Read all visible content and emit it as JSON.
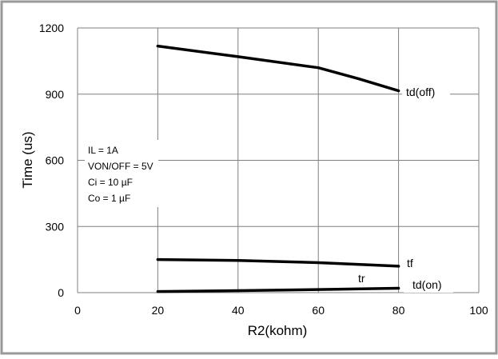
{
  "chart_data": {
    "type": "line",
    "title": "",
    "xlabel": "R2(kohm)",
    "ylabel": "Time (us)",
    "xlim": [
      0,
      100
    ],
    "ylim": [
      0,
      1200
    ],
    "xticks": [
      "0",
      "20",
      "40",
      "60",
      "80",
      "100"
    ],
    "yticks": [
      "0",
      "300",
      "600",
      "900",
      "1200"
    ],
    "grid": true,
    "legend": "none",
    "series": [
      {
        "name": "td(off)",
        "x": [
          20,
          40,
          60,
          70,
          80
        ],
        "values": [
          1118,
          1070,
          1020,
          970,
          915
        ]
      },
      {
        "name": "tf",
        "x": [
          20,
          40,
          60,
          80
        ],
        "values": [
          150,
          146,
          136,
          120
        ]
      },
      {
        "name": "tr",
        "x": [
          20,
          40,
          60,
          80
        ],
        "values": [
          5,
          9,
          14,
          20
        ]
      }
    ],
    "annotations": {
      "tr_label": "tr",
      "td_on_label": "td(on)",
      "conditions": [
        "IL = 1A",
        "VON/OFF = 5V",
        "Ci = 10 µF",
        "Co = 1 µF"
      ]
    },
    "colors": {
      "line": "#000000",
      "grid": "#808080",
      "frame": "#999999"
    }
  }
}
